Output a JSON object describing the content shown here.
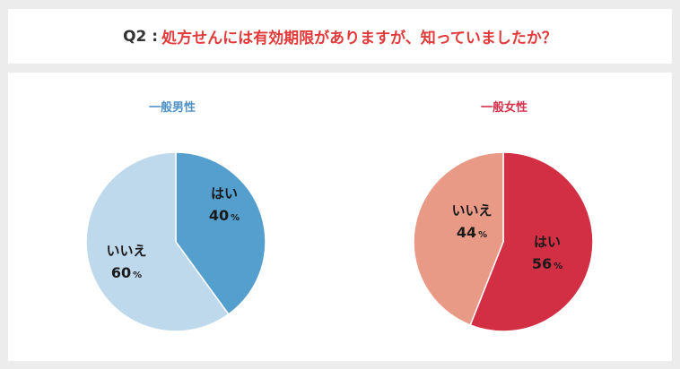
{
  "header": {
    "prefix": "Q2 :",
    "question": "処方せんには有効期限がありますが、知っていましたか？"
  },
  "colors": {
    "question": "#e03a3a",
    "male_title": "#4f92c6",
    "female_title": "#d3314a"
  },
  "chart_data": [
    {
      "type": "pie",
      "title": "一般男性",
      "slices": [
        {
          "label": "はい",
          "value": 40,
          "value_text": "40",
          "unit": "%",
          "color": "#559fcf"
        },
        {
          "label": "いいえ",
          "value": 60,
          "value_text": "60",
          "unit": "%",
          "color": "#bed8ec"
        }
      ]
    },
    {
      "type": "pie",
      "title": "一般女性",
      "slices": [
        {
          "label": "はい",
          "value": 56,
          "value_text": "56",
          "unit": "%",
          "color": "#d22f45"
        },
        {
          "label": "いいえ",
          "value": 44,
          "value_text": "44",
          "unit": "%",
          "color": "#e89a86"
        }
      ]
    }
  ]
}
